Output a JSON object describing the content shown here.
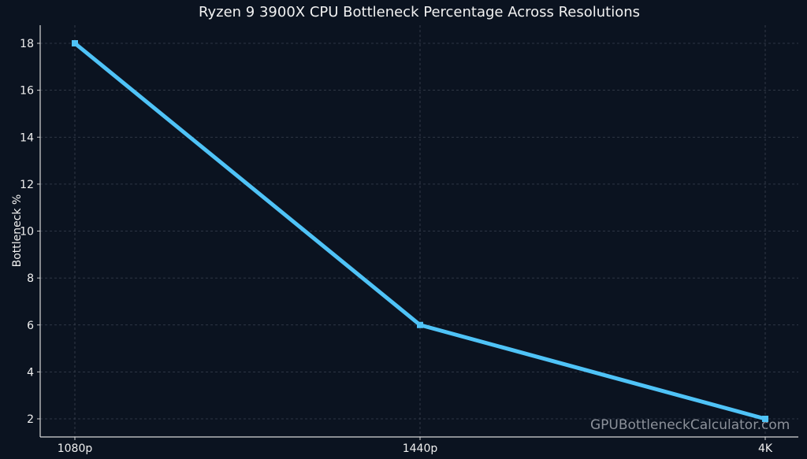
{
  "chart_data": {
    "type": "line",
    "title": "Ryzen 9 3900X CPU Bottleneck Percentage Across Resolutions",
    "xlabel": "",
    "ylabel": "Bottleneck %",
    "categories": [
      "1080p",
      "1440p",
      "4K"
    ],
    "series": [
      {
        "name": "Bottleneck %",
        "values": [
          18,
          6,
          2
        ],
        "color": "#4fc3f7",
        "marker": "square"
      }
    ],
    "yticks": [
      2,
      4,
      6,
      8,
      10,
      12,
      14,
      16,
      18
    ],
    "ylim": [
      1.2,
      18.8
    ],
    "grid": true,
    "legend": null,
    "background": "#0b1320"
  },
  "watermark": "GPUBottleneckCalculator.com"
}
